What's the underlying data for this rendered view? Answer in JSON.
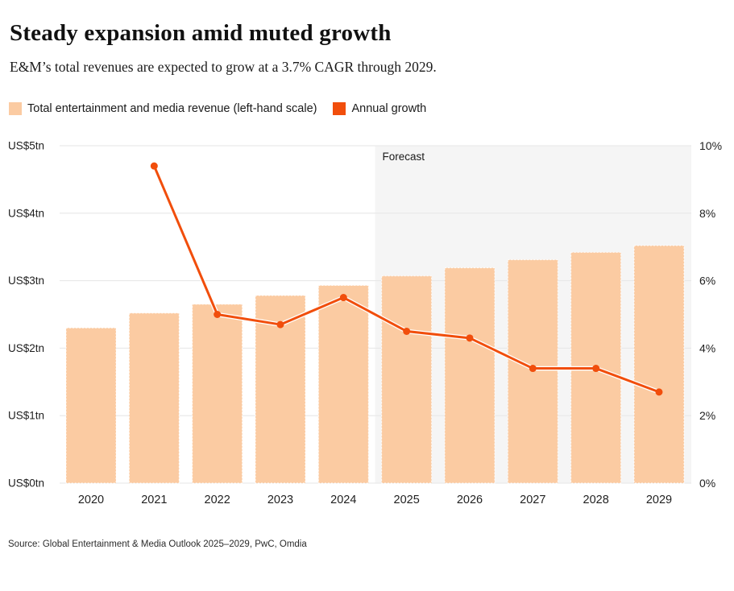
{
  "header": {
    "title": "Steady expansion amid muted growth",
    "subtitle": "E&M’s total revenues are expected to grow at a 3.7% CAGR through 2029."
  },
  "legend": {
    "items": [
      {
        "label": "Total entertainment and media revenue (left-hand scale)",
        "color": "#FBCBA2"
      },
      {
        "label": "Annual growth",
        "color": "#F14E0C"
      }
    ]
  },
  "chart_data": {
    "type": "bar",
    "subtype": "combo-bar-line-dual-axis",
    "title": "Steady expansion amid muted growth",
    "categories": [
      "2020",
      "2021",
      "2022",
      "2023",
      "2024",
      "2025",
      "2026",
      "2027",
      "2028",
      "2029"
    ],
    "series": [
      {
        "name": "Total entertainment and media revenue (left-hand scale)",
        "type": "bar",
        "axis": "left",
        "unit": "US$tn",
        "color": "#FBCBA2",
        "values": [
          2.3,
          2.52,
          2.65,
          2.78,
          2.93,
          3.07,
          3.19,
          3.31,
          3.42,
          3.52
        ]
      },
      {
        "name": "Annual growth",
        "type": "line",
        "axis": "right",
        "unit": "%",
        "color": "#F14E0C",
        "values": [
          null,
          9.4,
          5.0,
          4.7,
          5.5,
          4.5,
          4.3,
          3.4,
          3.4,
          2.7
        ]
      }
    ],
    "left_axis": {
      "labels": [
        "US$5tn",
        "US$4tn",
        "US$3tn",
        "US$2tn",
        "US$1tn",
        "US$0tn"
      ],
      "min": 0,
      "max": 5
    },
    "right_axis": {
      "labels": [
        "10%",
        "8%",
        "6%",
        "4%",
        "2%",
        "0%"
      ],
      "min": 0,
      "max": 10
    },
    "forecast": {
      "label": "Forecast",
      "start_category": "2025",
      "band_color": "#F5F5F5"
    },
    "grid": true,
    "gridline_color": "#E6E6E6",
    "legend_position": "top-left"
  },
  "footer": {
    "source": "Source: Global Entertainment & Media Outlook 2025–2029, PwC, Omdia"
  }
}
